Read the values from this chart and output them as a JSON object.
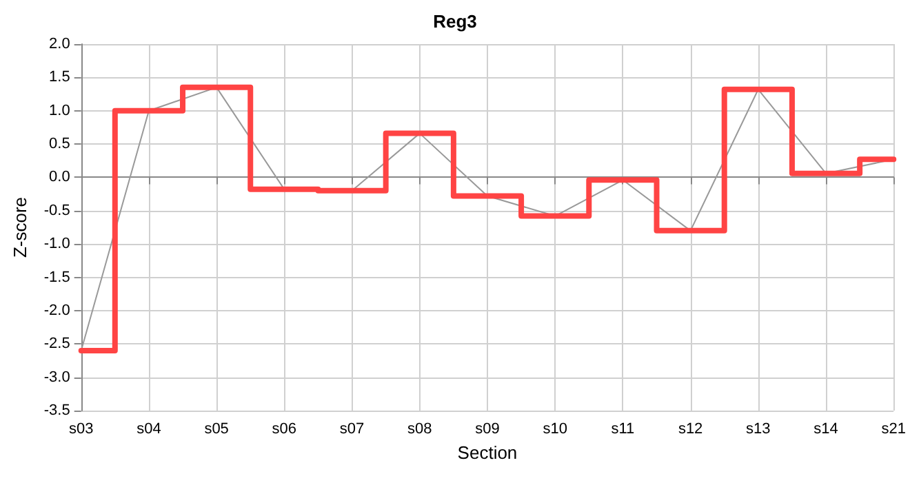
{
  "chart_data": {
    "type": "step",
    "title": "Reg3",
    "xlabel": "Section",
    "ylabel": "Z-score",
    "categories": [
      "s03",
      "s04",
      "s05",
      "s06",
      "s07",
      "s08",
      "s09",
      "s10",
      "s11",
      "s12",
      "s13",
      "s14",
      "s21"
    ],
    "series": [
      {
        "type": "line",
        "color": "#999999",
        "values": [
          -2.6,
          1.0,
          1.35,
          -0.18,
          -0.2,
          0.66,
          -0.28,
          -0.58,
          -0.04,
          -0.8,
          1.32,
          0.06,
          0.27
        ]
      },
      {
        "type": "step",
        "color": "#ff4444",
        "values": [
          -2.6,
          1.0,
          1.35,
          -0.18,
          -0.2,
          0.66,
          -0.28,
          -0.58,
          -0.04,
          -0.8,
          1.32,
          0.06,
          0.27
        ]
      }
    ],
    "ylim": [
      -3.5,
      2.0
    ],
    "yticks": [
      -3.5,
      {
        "value": -3,
        "label": "-3.0"
      },
      -2.5,
      {
        "value": -2,
        "label": "-2.0"
      },
      -1.5,
      {
        "value": -1,
        "label": "-1.0"
      },
      -0.5,
      {
        "value": 0,
        "label": "0.0"
      },
      0.5,
      {
        "value": 1,
        "label": "1.0"
      },
      1.5,
      {
        "value": 2,
        "label": "2.0"
      }
    ],
    "grid": true,
    "marker": "none",
    "line_style": "solid"
  }
}
